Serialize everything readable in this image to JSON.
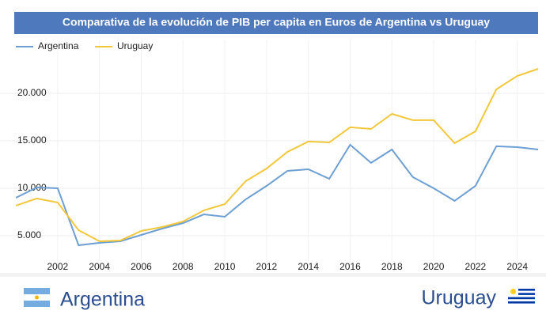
{
  "chart_data": {
    "type": "line",
    "title": "Comparativa de la evolución de PIB per capita en Euros de Argentina vs Uruguay",
    "x": [
      2000,
      2001,
      2002,
      2003,
      2004,
      2005,
      2006,
      2007,
      2008,
      2009,
      2010,
      2011,
      2012,
      2013,
      2014,
      2015,
      2016,
      2017,
      2018,
      2019,
      2020,
      2021,
      2022,
      2023,
      2024,
      2025
    ],
    "series": [
      {
        "name": "Argentina",
        "color": "#6d9fd3",
        "values": [
          9000,
          10080,
          10000,
          4000,
          4250,
          4420,
          5080,
          5750,
          6330,
          7250,
          7000,
          8830,
          10250,
          11830,
          12000,
          11000,
          14580,
          12670,
          14080,
          11170,
          10000,
          8670,
          10250,
          14420,
          14330,
          14080
        ]
      },
      {
        "name": "Uruguay",
        "color": "#f2c83a",
        "values": [
          8170,
          8920,
          8500,
          5580,
          4420,
          4500,
          5500,
          5920,
          6500,
          7670,
          8330,
          10750,
          12080,
          13830,
          14920,
          14830,
          16420,
          16250,
          17830,
          17170,
          17170,
          14750,
          16000,
          20420,
          21830,
          22580
        ]
      }
    ],
    "xlim": [
      1999.24,
      2025.3
    ],
    "xticks": [
      2002,
      2004,
      2006,
      2008,
      2010,
      2012,
      2014,
      2016,
      2018,
      2020,
      2022,
      2024
    ],
    "ylim": [
      1500,
      23580
    ],
    "yticks": [
      {
        "value": 5000,
        "label": "5.000"
      },
      {
        "value": 10000,
        "label": "10.000"
      },
      {
        "value": 15000,
        "label": "15.000"
      },
      {
        "value": 20000,
        "label": "20.000"
      }
    ],
    "grid": true,
    "legend": "top-left"
  },
  "footer": {
    "left": "Argentina",
    "right": "Uruguay"
  }
}
